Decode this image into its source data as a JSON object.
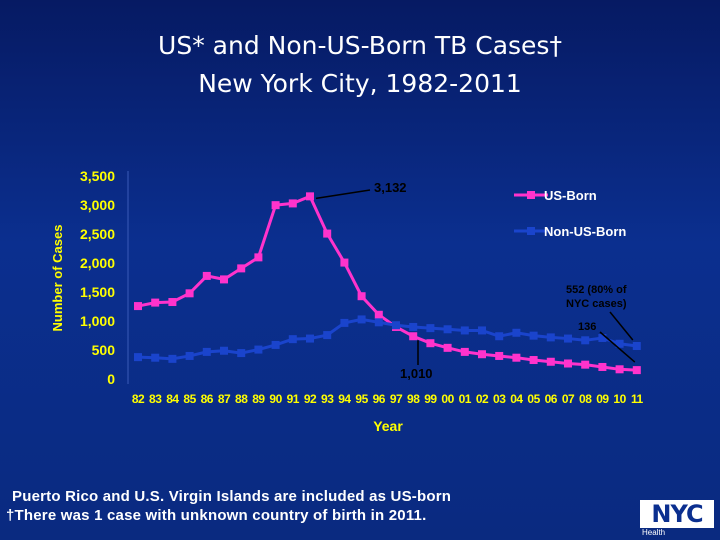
{
  "title": {
    "line1": "US* and Non-US-Born TB Cases†",
    "line2": "New York City, 1982-2011"
  },
  "footnotes": {
    "line1": "Puerto Rico and U.S. Virgin Islands are included as US-born",
    "line2": "†There was 1 case with unknown country of birth in 2011."
  },
  "logo": {
    "main": "NYC",
    "sub": "Health"
  },
  "colors": {
    "us_born": "#ff33cc",
    "non_us_born": "#1a44cc",
    "axis_text": "#ffff00",
    "background": "#0b2f8f"
  },
  "chart_data": {
    "type": "line",
    "title": "US* and Non-US-Born TB Cases† New York City, 1982-2011",
    "xlabel": "Year",
    "ylabel": "Number of Cases",
    "ylim": [
      0,
      3500
    ],
    "yticks": [
      0,
      500,
      1000,
      1500,
      2000,
      2500,
      3000,
      3500
    ],
    "ytick_labels": [
      "0",
      "500",
      "1,000",
      "1,500",
      "2,000",
      "2,500",
      "3,000",
      "3,500"
    ],
    "grid": false,
    "legend_position": "top-right",
    "categories": [
      "82",
      "83",
      "84",
      "85",
      "86",
      "87",
      "88",
      "89",
      "90",
      "91",
      "92",
      "93",
      "94",
      "95",
      "96",
      "97",
      "98",
      "99",
      "00",
      "01",
      "02",
      "03",
      "04",
      "05",
      "06",
      "07",
      "08",
      "09",
      "10",
      "11"
    ],
    "series": [
      {
        "name": "US-Born",
        "color": "#ff33cc",
        "values": [
          1240,
          1300,
          1310,
          1460,
          1760,
          1700,
          1890,
          2080,
          2980,
          3010,
          3132,
          2490,
          1990,
          1410,
          1090,
          880,
          720,
          600,
          520,
          450,
          410,
          380,
          350,
          310,
          280,
          250,
          230,
          190,
          150,
          136
        ]
      },
      {
        "name": "Non-US-Born",
        "color": "#1a44cc",
        "values": [
          360,
          350,
          330,
          380,
          450,
          470,
          430,
          490,
          570,
          670,
          680,
          740,
          950,
          1010,
          960,
          910,
          880,
          860,
          840,
          820,
          820,
          720,
          780,
          730,
          700,
          680,
          650,
          690,
          590,
          552
        ]
      }
    ],
    "annotations": [
      {
        "text": "3,132",
        "x": "92",
        "series": "US-Born"
      },
      {
        "text": "1,010",
        "x": "95",
        "series": "Non-US-Born"
      },
      {
        "text": "552 (80% of NYC cases)",
        "x": "11",
        "series": "Non-US-Born"
      },
      {
        "text": "136",
        "x": "11",
        "series": "US-Born"
      }
    ]
  }
}
